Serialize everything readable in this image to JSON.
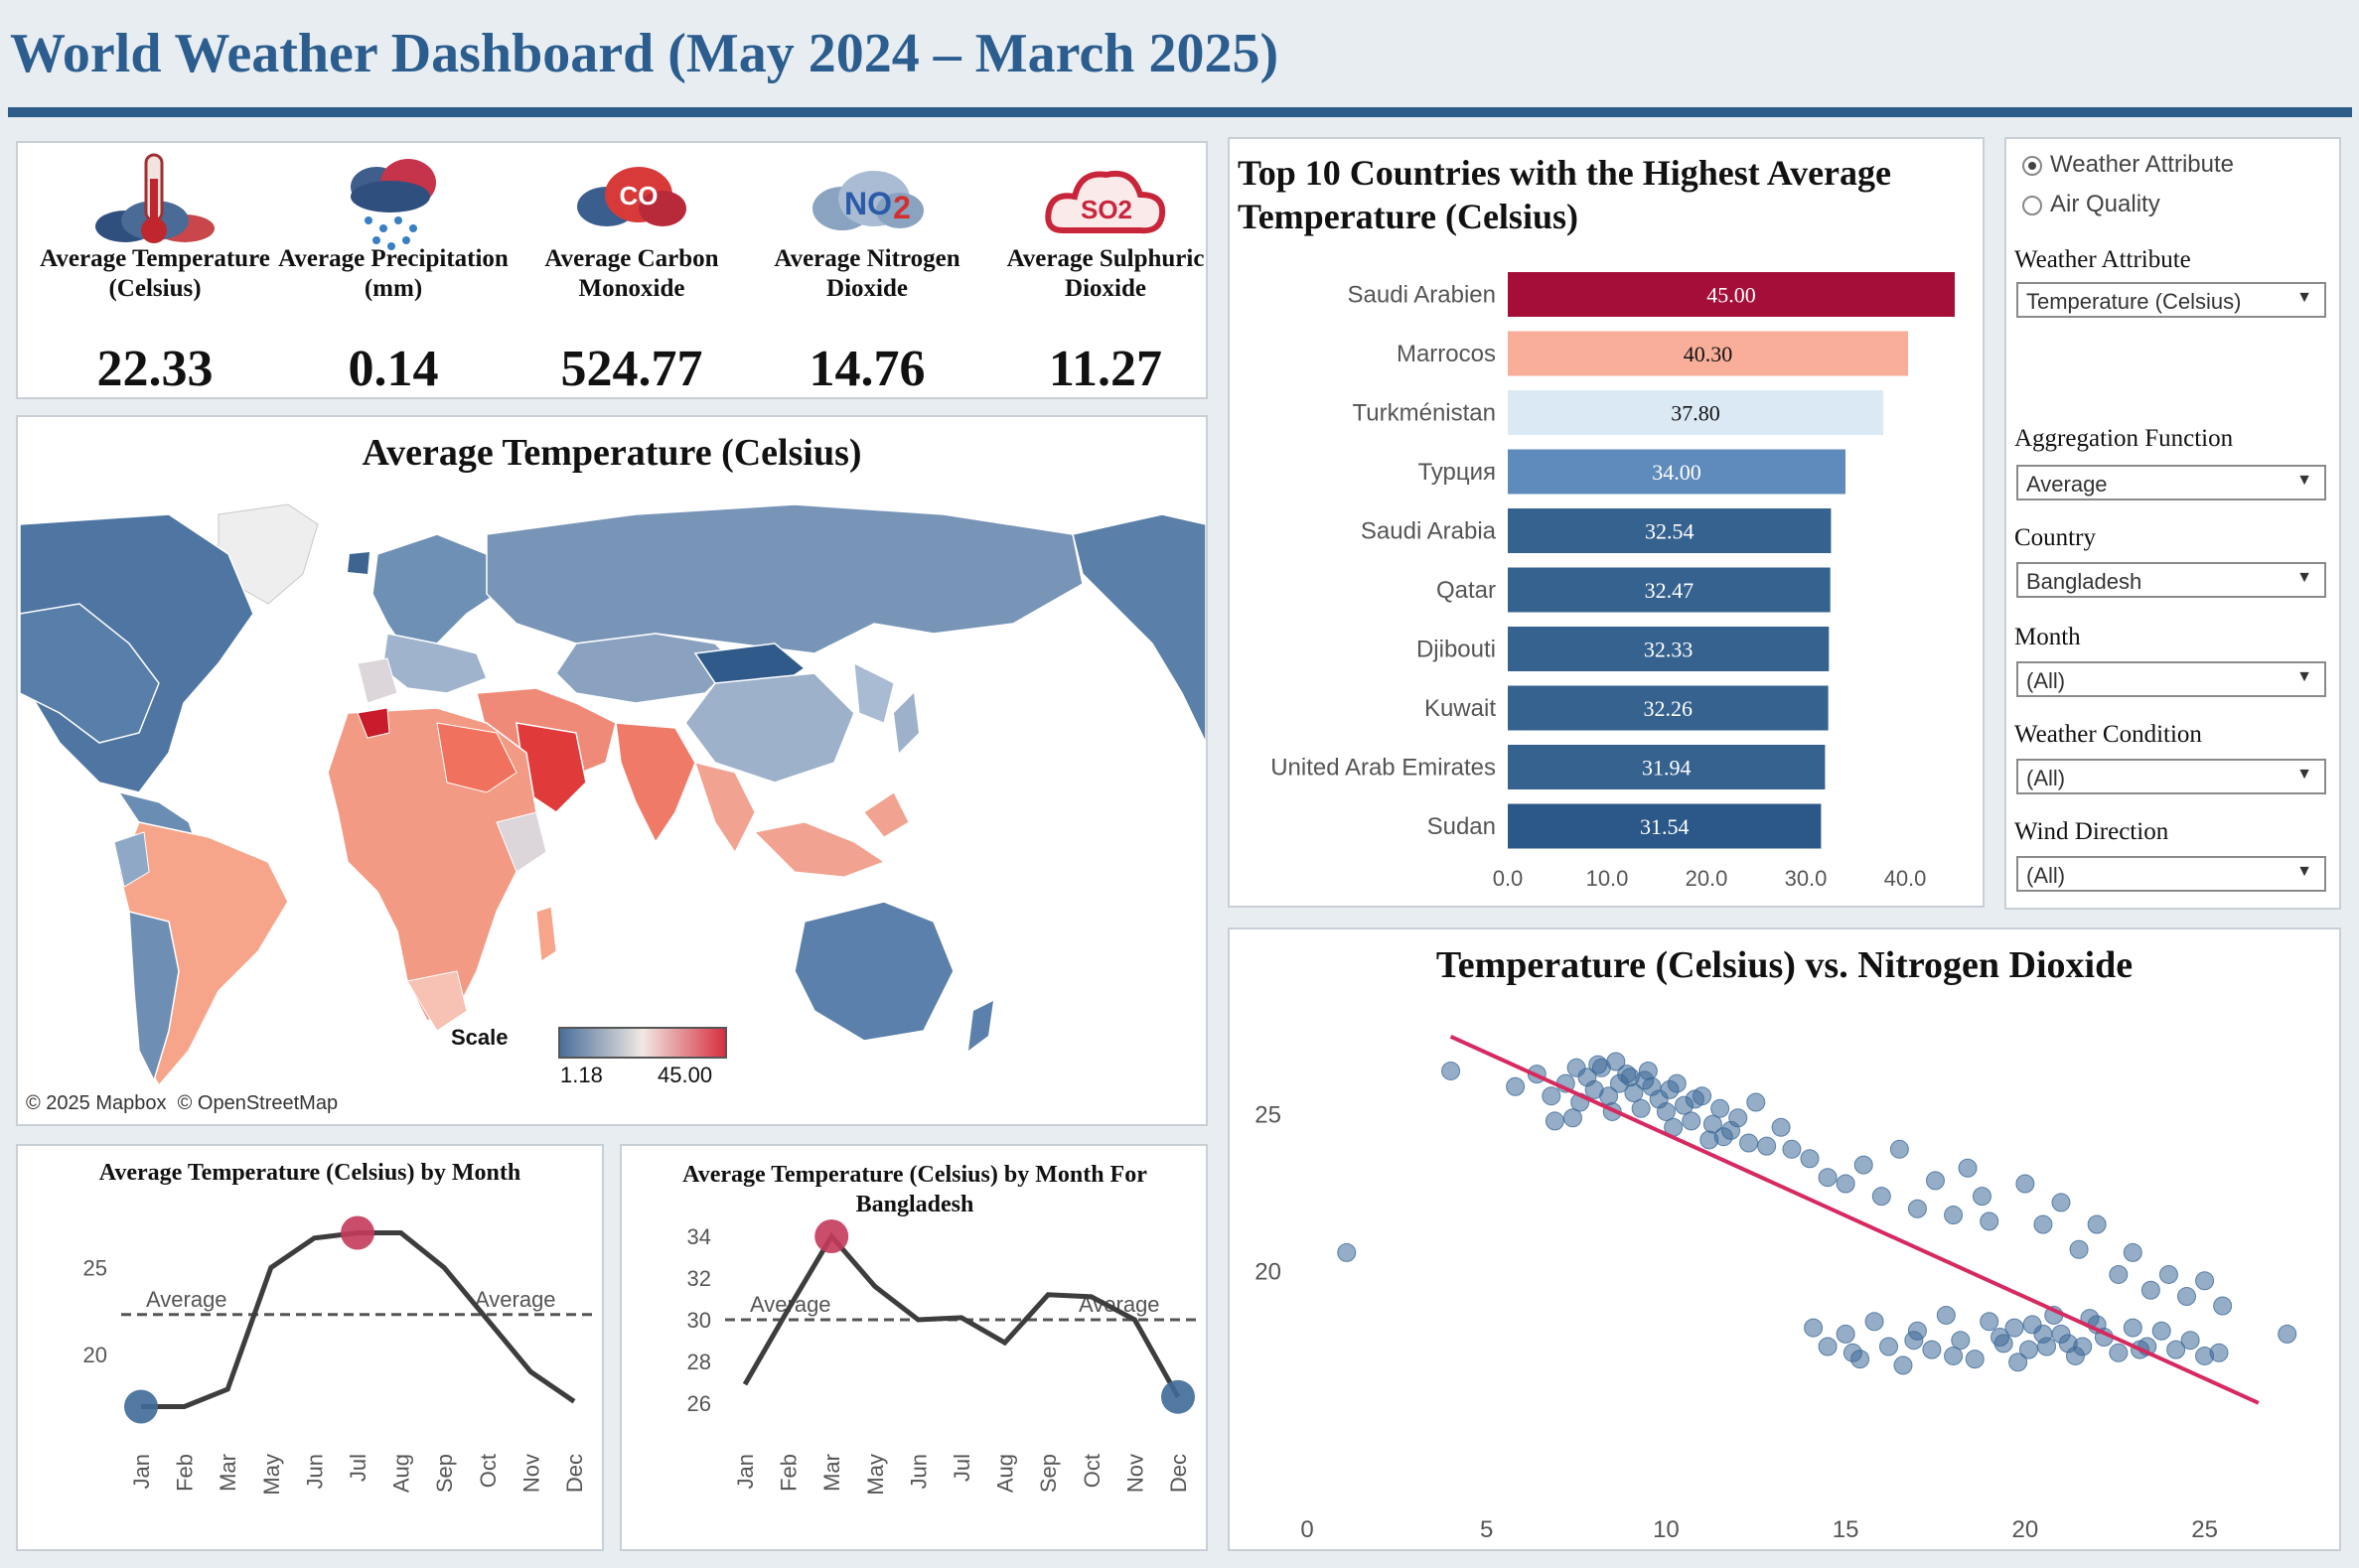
{
  "header": {
    "title": "World Weather Dashboard (May 2024 – March 2025)"
  },
  "kpis": [
    {
      "label": "Average Temperature (Celsius)",
      "value": "22.33",
      "icon": "thermometer-cloud-icon"
    },
    {
      "label": "Average Precipitation (mm)",
      "value": "0.14",
      "icon": "rain-cloud-icon"
    },
    {
      "label": "Average Carbon Monoxide",
      "value": "524.77",
      "icon": "co-cloud-icon"
    },
    {
      "label": "Average Nitrogen Dioxide",
      "value": "14.76",
      "icon": "no2-cloud-icon"
    },
    {
      "label": "Average Sulphuric Dioxide",
      "value": "11.27",
      "icon": "so2-cloud-icon"
    }
  ],
  "map": {
    "title": "Average Temperature (Celsius)",
    "scale_label": "Scale",
    "scale_min": "1.18",
    "scale_max": "45.00",
    "attribution": "© 2025 Mapbox  © OpenStreetMap",
    "colors": {
      "low": "#4a6f9a",
      "mid": "#f0e8e4",
      "high": "#d7303f"
    }
  },
  "filters": {
    "radio_options": [
      "Weather Attribute",
      "Air Quality"
    ],
    "radio_selected": "Weather Attribute",
    "weather_attribute_label": "Weather Attribute",
    "weather_attribute_value": "Temperature (Celsius)",
    "aggregation_label": "Aggregation Function",
    "aggregation_value": "Average",
    "country_label": "Country",
    "country_value": "Bangladesh",
    "month_label": "Month",
    "month_value": "(All)",
    "condition_label": "Weather Condition",
    "condition_value": "(All)",
    "wind_label": "Wind Direction",
    "wind_value": "(All)",
    "arrow": "▼"
  },
  "chart_data": [
    {
      "type": "bar",
      "title": "Top 10 Countries with the Highest Average Temperature (Celsius)",
      "categories": [
        "Saudi Arabien",
        "Marrocos",
        "Turkménistan",
        "Турция",
        "Saudi Arabia",
        "Qatar",
        "Djibouti",
        "Kuwait",
        "United Arab Emirates",
        "Sudan"
      ],
      "values": [
        45.0,
        40.3,
        37.8,
        34.0,
        32.54,
        32.47,
        32.33,
        32.26,
        31.94,
        31.54
      ],
      "value_labels": [
        "45.00",
        "40.30",
        "37.80",
        "34.00",
        "32.54",
        "32.47",
        "32.33",
        "32.26",
        "31.94",
        "31.54"
      ],
      "colors": [
        "#a50f37",
        "#f9ae9a",
        "#dbe9f5",
        "#5e8bbb",
        "#36628f",
        "#36628f",
        "#36628f",
        "#36628f",
        "#36628f",
        "#2b5888"
      ],
      "xlim": [
        0,
        45
      ],
      "xticks": [
        "0.0",
        "10.0",
        "20.0",
        "30.0",
        "40.0"
      ]
    },
    {
      "type": "line",
      "title": "Average Temperature (Celsius) by Month",
      "categories": [
        "Jan",
        "Feb",
        "Mar",
        "May",
        "Jun",
        "Jul",
        "Aug",
        "Sep",
        "Oct",
        "Nov",
        "Dec"
      ],
      "values": [
        17.0,
        17.0,
        18.0,
        25.0,
        26.7,
        27.0,
        27.0,
        25.0,
        22.0,
        19.0,
        17.3
      ],
      "average": 22.3,
      "average_label": "Average",
      "ylim": [
        16,
        28
      ],
      "yticks": [
        "20",
        "25"
      ],
      "highlight_max_index": 5,
      "highlight_min_index": 0
    },
    {
      "type": "line",
      "title": "Average Temperature (Celsius) by Month For Bangladesh",
      "categories": [
        "Jan",
        "Feb",
        "Mar",
        "May",
        "Jun",
        "Jul",
        "Aug",
        "Sep",
        "Oct",
        "Nov",
        "Dec"
      ],
      "values": [
        26.9,
        30.5,
        34.0,
        31.6,
        30.0,
        30.1,
        28.9,
        31.2,
        31.1,
        30.0,
        26.3
      ],
      "average": 30.0,
      "average_label": "Average",
      "ylim": [
        25,
        35
      ],
      "yticks": [
        "26",
        "28",
        "30",
        "32",
        "34"
      ],
      "highlight_max_index": 2,
      "highlight_min_index": 10
    },
    {
      "type": "scatter",
      "title": "Temperature (Celsius) vs. Nitrogen Dioxide",
      "xlim": [
        0,
        28
      ],
      "ylim": [
        15,
        28
      ],
      "xticks": [
        "0",
        "5",
        "10",
        "15",
        "20",
        "25"
      ],
      "yticks": [
        "20",
        "25"
      ],
      "points": [
        [
          1.1,
          20.6
        ],
        [
          4.0,
          26.4
        ],
        [
          5.8,
          25.9
        ],
        [
          6.4,
          26.3
        ],
        [
          6.8,
          25.6
        ],
        [
          7.2,
          26.0
        ],
        [
          7.4,
          24.9
        ],
        [
          7.6,
          25.4
        ],
        [
          7.8,
          26.2
        ],
        [
          8.0,
          25.8
        ],
        [
          8.2,
          26.5
        ],
        [
          8.4,
          25.6
        ],
        [
          8.5,
          25.1
        ],
        [
          8.7,
          26.0
        ],
        [
          8.9,
          26.3
        ],
        [
          9.1,
          25.7
        ],
        [
          9.3,
          25.2
        ],
        [
          9.4,
          26.1
        ],
        [
          9.6,
          25.9
        ],
        [
          9.8,
          25.5
        ],
        [
          10.0,
          25.1
        ],
        [
          10.2,
          24.6
        ],
        [
          10.3,
          26.0
        ],
        [
          10.5,
          25.3
        ],
        [
          10.7,
          24.8
        ],
        [
          11.0,
          25.6
        ],
        [
          11.2,
          24.2
        ],
        [
          11.5,
          25.2
        ],
        [
          11.8,
          24.5
        ],
        [
          12.0,
          24.9
        ],
        [
          12.3,
          24.1
        ],
        [
          12.5,
          25.4
        ],
        [
          12.8,
          24.0
        ],
        [
          13.2,
          24.6
        ],
        [
          13.5,
          23.9
        ],
        [
          14.0,
          23.6
        ],
        [
          14.5,
          23.0
        ],
        [
          15.0,
          22.8
        ],
        [
          15.5,
          23.4
        ],
        [
          16.0,
          22.4
        ],
        [
          16.5,
          23.9
        ],
        [
          17.0,
          22.0
        ],
        [
          17.5,
          22.9
        ],
        [
          18.0,
          21.8
        ],
        [
          18.4,
          23.3
        ],
        [
          18.8,
          22.4
        ],
        [
          19.0,
          21.6
        ],
        [
          20.0,
          22.8
        ],
        [
          20.5,
          21.5
        ],
        [
          21.0,
          22.2
        ],
        [
          21.5,
          20.7
        ],
        [
          22.0,
          21.5
        ],
        [
          22.6,
          19.9
        ],
        [
          23.0,
          20.6
        ],
        [
          23.5,
          19.4
        ],
        [
          24.0,
          19.9
        ],
        [
          24.5,
          19.2
        ],
        [
          25.0,
          19.7
        ],
        [
          25.5,
          18.9
        ],
        [
          27.3,
          18.0
        ],
        [
          6.9,
          24.8
        ],
        [
          7.5,
          26.5
        ],
        [
          8.1,
          26.6
        ],
        [
          8.6,
          26.7
        ],
        [
          9.0,
          26.2
        ],
        [
          9.5,
          26.4
        ],
        [
          10.1,
          25.8
        ],
        [
          10.8,
          25.5
        ],
        [
          11.3,
          24.7
        ],
        [
          11.6,
          24.3
        ],
        [
          14.1,
          18.2
        ],
        [
          14.5,
          17.6
        ],
        [
          15.0,
          18.0
        ],
        [
          15.4,
          17.2
        ],
        [
          15.8,
          18.4
        ],
        [
          16.2,
          17.6
        ],
        [
          16.6,
          17.0
        ],
        [
          17.0,
          18.1
        ],
        [
          17.4,
          17.5
        ],
        [
          17.8,
          18.6
        ],
        [
          18.2,
          17.8
        ],
        [
          18.6,
          17.2
        ],
        [
          19.0,
          18.4
        ],
        [
          19.4,
          17.7
        ],
        [
          19.8,
          17.1
        ],
        [
          20.2,
          18.3
        ],
        [
          20.6,
          17.6
        ],
        [
          21.0,
          18.0
        ],
        [
          21.4,
          17.3
        ],
        [
          21.8,
          18.5
        ],
        [
          22.2,
          17.9
        ],
        [
          22.6,
          17.4
        ],
        [
          23.0,
          18.2
        ],
        [
          23.4,
          17.6
        ],
        [
          23.8,
          18.1
        ],
        [
          24.2,
          17.5
        ],
        [
          24.6,
          17.8
        ],
        [
          25.0,
          17.3
        ],
        [
          25.4,
          17.4
        ],
        [
          19.3,
          17.9
        ],
        [
          19.7,
          18.2
        ],
        [
          20.1,
          17.5
        ],
        [
          20.5,
          18.0
        ],
        [
          21.2,
          17.7
        ],
        [
          16.9,
          17.8
        ],
        [
          15.2,
          17.4
        ],
        [
          22.0,
          18.3
        ],
        [
          23.2,
          17.5
        ],
        [
          20.8,
          18.6
        ],
        [
          18.0,
          17.3
        ],
        [
          21.6,
          17.6
        ]
      ],
      "trend_x": [
        4.0,
        26.5
      ],
      "trend_y": [
        27.5,
        15.8
      ],
      "point_color": "#3e6a98",
      "trend_color": "#d62a5f"
    }
  ]
}
